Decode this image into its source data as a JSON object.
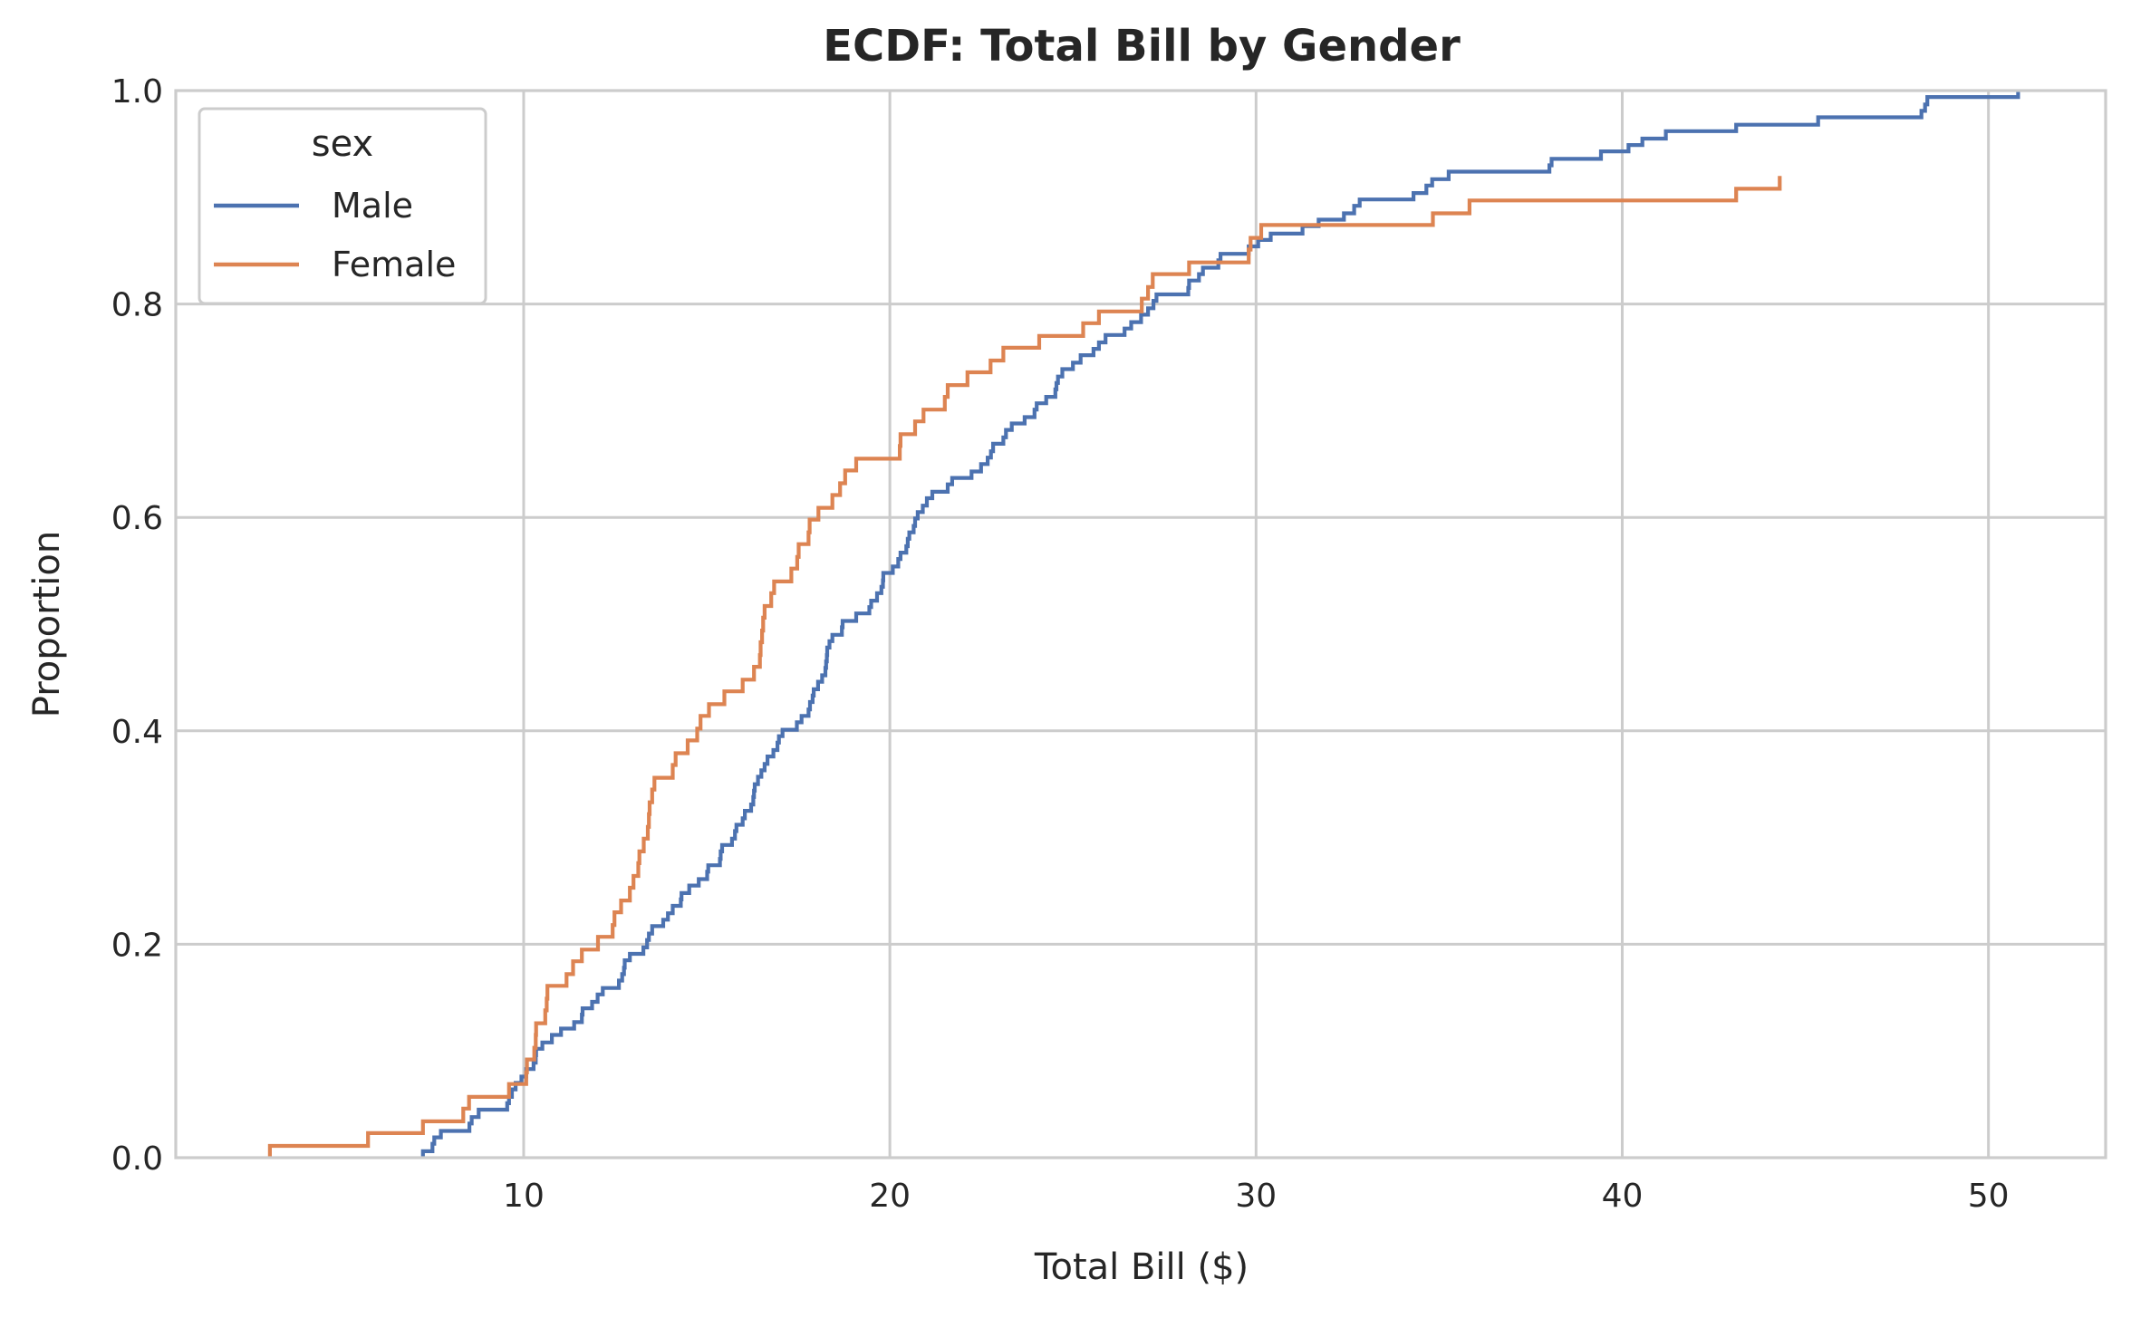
{
  "chart_data": {
    "type": "line",
    "subtype": "ecdf-step",
    "title": "ECDF: Total Bill by Gender",
    "xlabel": "Total Bill ($)",
    "ylabel": "Proportion",
    "xlim": [
      0.5,
      53.2
    ],
    "ylim": [
      0,
      1.0
    ],
    "x_ticks": [
      10,
      20,
      30,
      40,
      50
    ],
    "y_ticks": [
      0.0,
      0.2,
      0.4,
      0.6,
      0.8,
      1.0
    ],
    "x_tick_labels": [
      "10",
      "20",
      "30",
      "40",
      "50"
    ],
    "y_tick_labels": [
      "0.0",
      "0.2",
      "0.4",
      "0.6",
      "0.8",
      "1.0"
    ],
    "grid": true,
    "legend": {
      "title": "sex",
      "placement": "top-left"
    },
    "series": [
      {
        "name": "Male",
        "color": "#4c72b0",
        "points": [
          [
            7.25,
            0.006
          ],
          [
            7.51,
            0.013
          ],
          [
            7.56,
            0.019
          ],
          [
            7.74,
            0.025
          ],
          [
            8.52,
            0.032
          ],
          [
            8.58,
            0.038
          ],
          [
            8.77,
            0.045
          ],
          [
            9.55,
            0.051
          ],
          [
            9.6,
            0.057
          ],
          [
            9.68,
            0.064
          ],
          [
            9.78,
            0.07
          ],
          [
            9.94,
            0.076
          ],
          [
            10.07,
            0.083
          ],
          [
            10.27,
            0.089
          ],
          [
            10.33,
            0.096
          ],
          [
            10.34,
            0.102
          ],
          [
            10.51,
            0.108
          ],
          [
            10.77,
            0.115
          ],
          [
            11.02,
            0.121
          ],
          [
            11.38,
            0.127
          ],
          [
            11.59,
            0.134
          ],
          [
            11.61,
            0.14
          ],
          [
            11.87,
            0.146
          ],
          [
            12.02,
            0.153
          ],
          [
            12.16,
            0.159
          ],
          [
            12.6,
            0.166
          ],
          [
            12.69,
            0.172
          ],
          [
            12.74,
            0.178
          ],
          [
            12.76,
            0.185
          ],
          [
            12.9,
            0.191
          ],
          [
            13.27,
            0.197
          ],
          [
            13.37,
            0.204
          ],
          [
            13.42,
            0.21
          ],
          [
            13.51,
            0.217
          ],
          [
            13.81,
            0.223
          ],
          [
            13.94,
            0.229
          ],
          [
            14.07,
            0.236
          ],
          [
            14.29,
            0.242
          ],
          [
            14.31,
            0.248
          ],
          [
            14.52,
            0.255
          ],
          [
            14.78,
            0.261
          ],
          [
            15.01,
            0.268
          ],
          [
            15.04,
            0.274
          ],
          [
            15.36,
            0.28
          ],
          [
            15.38,
            0.287
          ],
          [
            15.42,
            0.293
          ],
          [
            15.69,
            0.299
          ],
          [
            15.77,
            0.306
          ],
          [
            15.81,
            0.312
          ],
          [
            15.98,
            0.318
          ],
          [
            16.04,
            0.325
          ],
          [
            16.21,
            0.331
          ],
          [
            16.27,
            0.338
          ],
          [
            16.29,
            0.344
          ],
          [
            16.31,
            0.35
          ],
          [
            16.4,
            0.357
          ],
          [
            16.49,
            0.363
          ],
          [
            16.58,
            0.369
          ],
          [
            16.66,
            0.376
          ],
          [
            16.82,
            0.382
          ],
          [
            16.93,
            0.389
          ],
          [
            16.97,
            0.395
          ],
          [
            17.07,
            0.401
          ],
          [
            17.46,
            0.408
          ],
          [
            17.59,
            0.414
          ],
          [
            17.78,
            0.42
          ],
          [
            17.82,
            0.427
          ],
          [
            17.89,
            0.433
          ],
          [
            17.92,
            0.439
          ],
          [
            18.04,
            0.446
          ],
          [
            18.15,
            0.452
          ],
          [
            18.24,
            0.459
          ],
          [
            18.26,
            0.465
          ],
          [
            18.28,
            0.471
          ],
          [
            18.29,
            0.478
          ],
          [
            18.35,
            0.484
          ],
          [
            18.43,
            0.49
          ],
          [
            18.69,
            0.497
          ],
          [
            18.71,
            0.503
          ],
          [
            19.08,
            0.51
          ],
          [
            19.44,
            0.516
          ],
          [
            19.49,
            0.522
          ],
          [
            19.65,
            0.529
          ],
          [
            19.77,
            0.535
          ],
          [
            19.81,
            0.541
          ],
          [
            19.82,
            0.548
          ],
          [
            20.08,
            0.554
          ],
          [
            20.23,
            0.561
          ],
          [
            20.29,
            0.567
          ],
          [
            20.45,
            0.573
          ],
          [
            20.49,
            0.58
          ],
          [
            20.53,
            0.586
          ],
          [
            20.65,
            0.592
          ],
          [
            20.69,
            0.599
          ],
          [
            20.76,
            0.605
          ],
          [
            20.9,
            0.611
          ],
          [
            21.01,
            0.618
          ],
          [
            21.16,
            0.624
          ],
          [
            21.58,
            0.631
          ],
          [
            21.7,
            0.637
          ],
          [
            22.23,
            0.643
          ],
          [
            22.49,
            0.65
          ],
          [
            22.67,
            0.656
          ],
          [
            22.76,
            0.662
          ],
          [
            22.82,
            0.669
          ],
          [
            23.1,
            0.675
          ],
          [
            23.17,
            0.682
          ],
          [
            23.33,
            0.688
          ],
          [
            23.68,
            0.694
          ],
          [
            23.95,
            0.701
          ],
          [
            24.01,
            0.707
          ],
          [
            24.27,
            0.713
          ],
          [
            24.52,
            0.72
          ],
          [
            24.55,
            0.726
          ],
          [
            24.59,
            0.732
          ],
          [
            24.71,
            0.739
          ],
          [
            25.0,
            0.745
          ],
          [
            25.21,
            0.752
          ],
          [
            25.56,
            0.758
          ],
          [
            25.71,
            0.764
          ],
          [
            25.89,
            0.771
          ],
          [
            26.41,
            0.777
          ],
          [
            26.59,
            0.783
          ],
          [
            26.86,
            0.79
          ],
          [
            27.05,
            0.796
          ],
          [
            27.2,
            0.803
          ],
          [
            27.28,
            0.809
          ],
          [
            28.15,
            0.815
          ],
          [
            28.17,
            0.822
          ],
          [
            28.44,
            0.828
          ],
          [
            28.55,
            0.834
          ],
          [
            28.97,
            0.841
          ],
          [
            29.03,
            0.847
          ],
          [
            29.8,
            0.854
          ],
          [
            30.06,
            0.86
          ],
          [
            30.4,
            0.866
          ],
          [
            31.27,
            0.873
          ],
          [
            31.71,
            0.879
          ],
          [
            32.4,
            0.885
          ],
          [
            32.68,
            0.892
          ],
          [
            32.83,
            0.898
          ],
          [
            34.3,
            0.904
          ],
          [
            34.65,
            0.911
          ],
          [
            34.81,
            0.917
          ],
          [
            35.26,
            0.924
          ],
          [
            38.01,
            0.93
          ],
          [
            38.07,
            0.936
          ],
          [
            39.42,
            0.943
          ],
          [
            40.17,
            0.949
          ],
          [
            40.55,
            0.955
          ],
          [
            41.19,
            0.962
          ],
          [
            43.11,
            0.968
          ],
          [
            45.35,
            0.975
          ],
          [
            48.17,
            0.981
          ],
          [
            48.27,
            0.987
          ],
          [
            48.33,
            0.994
          ],
          [
            50.81,
            1.0
          ]
        ]
      },
      {
        "name": "Female",
        "color": "#dd8452",
        "points": [
          [
            3.07,
            0.011
          ],
          [
            5.75,
            0.023
          ],
          [
            7.25,
            0.034
          ],
          [
            8.35,
            0.046
          ],
          [
            8.51,
            0.057
          ],
          [
            9.6,
            0.069
          ],
          [
            10.07,
            0.08
          ],
          [
            10.09,
            0.092
          ],
          [
            10.29,
            0.103
          ],
          [
            10.33,
            0.115
          ],
          [
            10.34,
            0.126
          ],
          [
            10.59,
            0.138
          ],
          [
            10.63,
            0.149
          ],
          [
            10.65,
            0.161
          ],
          [
            11.17,
            0.172
          ],
          [
            11.35,
            0.184
          ],
          [
            11.59,
            0.195
          ],
          [
            12.03,
            0.207
          ],
          [
            12.43,
            0.218
          ],
          [
            12.48,
            0.23
          ],
          [
            12.66,
            0.241
          ],
          [
            12.9,
            0.253
          ],
          [
            13.0,
            0.264
          ],
          [
            13.13,
            0.276
          ],
          [
            13.16,
            0.287
          ],
          [
            13.28,
            0.299
          ],
          [
            13.39,
            0.31
          ],
          [
            13.42,
            0.322
          ],
          [
            13.44,
            0.333
          ],
          [
            13.51,
            0.345
          ],
          [
            13.57,
            0.356
          ],
          [
            14.07,
            0.368
          ],
          [
            14.15,
            0.379
          ],
          [
            14.48,
            0.391
          ],
          [
            14.74,
            0.402
          ],
          [
            14.83,
            0.414
          ],
          [
            15.06,
            0.425
          ],
          [
            15.48,
            0.437
          ],
          [
            15.98,
            0.448
          ],
          [
            16.29,
            0.46
          ],
          [
            16.45,
            0.471
          ],
          [
            16.47,
            0.483
          ],
          [
            16.51,
            0.494
          ],
          [
            16.54,
            0.506
          ],
          [
            16.58,
            0.517
          ],
          [
            16.76,
            0.529
          ],
          [
            16.84,
            0.54
          ],
          [
            17.31,
            0.552
          ],
          [
            17.47,
            0.563
          ],
          [
            17.51,
            0.575
          ],
          [
            17.78,
            0.586
          ],
          [
            17.81,
            0.598
          ],
          [
            18.05,
            0.609
          ],
          [
            18.43,
            0.621
          ],
          [
            18.64,
            0.632
          ],
          [
            18.78,
            0.644
          ],
          [
            19.08,
            0.655
          ],
          [
            20.27,
            0.667
          ],
          [
            20.29,
            0.678
          ],
          [
            20.69,
            0.69
          ],
          [
            20.92,
            0.701
          ],
          [
            21.5,
            0.713
          ],
          [
            21.58,
            0.724
          ],
          [
            22.12,
            0.736
          ],
          [
            22.75,
            0.747
          ],
          [
            23.1,
            0.759
          ],
          [
            24.08,
            0.77
          ],
          [
            25.28,
            0.782
          ],
          [
            25.71,
            0.793
          ],
          [
            26.88,
            0.805
          ],
          [
            27.05,
            0.816
          ],
          [
            27.18,
            0.828
          ],
          [
            28.17,
            0.839
          ],
          [
            29.8,
            0.851
          ],
          [
            29.85,
            0.862
          ],
          [
            30.14,
            0.874
          ],
          [
            34.83,
            0.885
          ],
          [
            35.83,
            0.897
          ],
          [
            43.11,
            0.908
          ],
          [
            44.3,
            0.92
          ]
        ]
      }
    ]
  }
}
